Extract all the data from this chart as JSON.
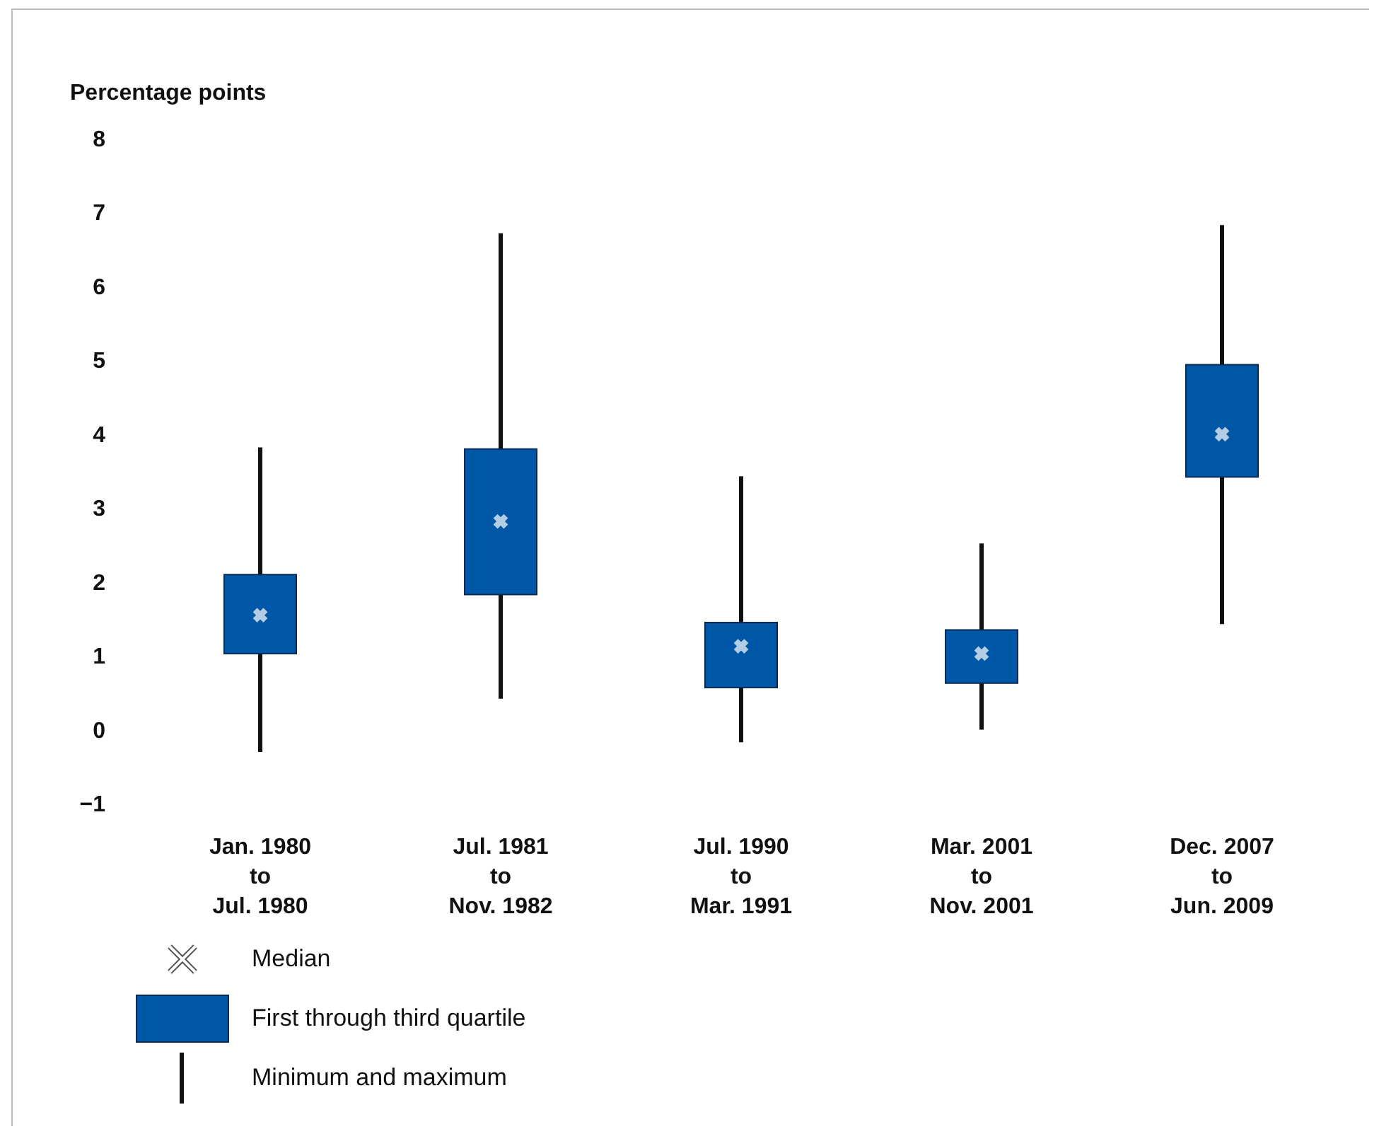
{
  "chart_data": {
    "type": "box",
    "ylabel": "Percentage points",
    "categories": [
      "Jan. 1980\nto\nJul. 1980",
      "Jul. 1981\nto\nNov. 1982",
      "Jul. 1990\nto\nMar. 1991",
      "Mar. 2001\nto\nNov. 2001",
      "Dec. 2007\nto\nJun. 2009"
    ],
    "boxes": [
      {
        "low": -0.3,
        "q1": 1.03,
        "median": 1.55,
        "q3": 2.1,
        "high": 3.82
      },
      {
        "low": 0.42,
        "q1": 1.83,
        "median": 2.82,
        "q3": 3.8,
        "high": 6.72
      },
      {
        "low": -0.17,
        "q1": 0.57,
        "median": 1.13,
        "q3": 1.45,
        "high": 3.43
      },
      {
        "low": 0,
        "q1": 0.63,
        "median": 1.03,
        "q3": 1.35,
        "high": 2.52
      },
      {
        "low": 1.43,
        "q1": 3.42,
        "median": 4,
        "q3": 4.94,
        "high": 6.83
      }
    ],
    "color": "#0057a8",
    "ylim": [
      -1,
      8
    ],
    "yticks": [
      -1,
      0,
      1,
      2,
      3,
      4,
      5,
      6,
      7,
      8
    ],
    "grid": false,
    "annotations": [
      "Median",
      "First through third quartile",
      "Minimum and maximum"
    ]
  }
}
